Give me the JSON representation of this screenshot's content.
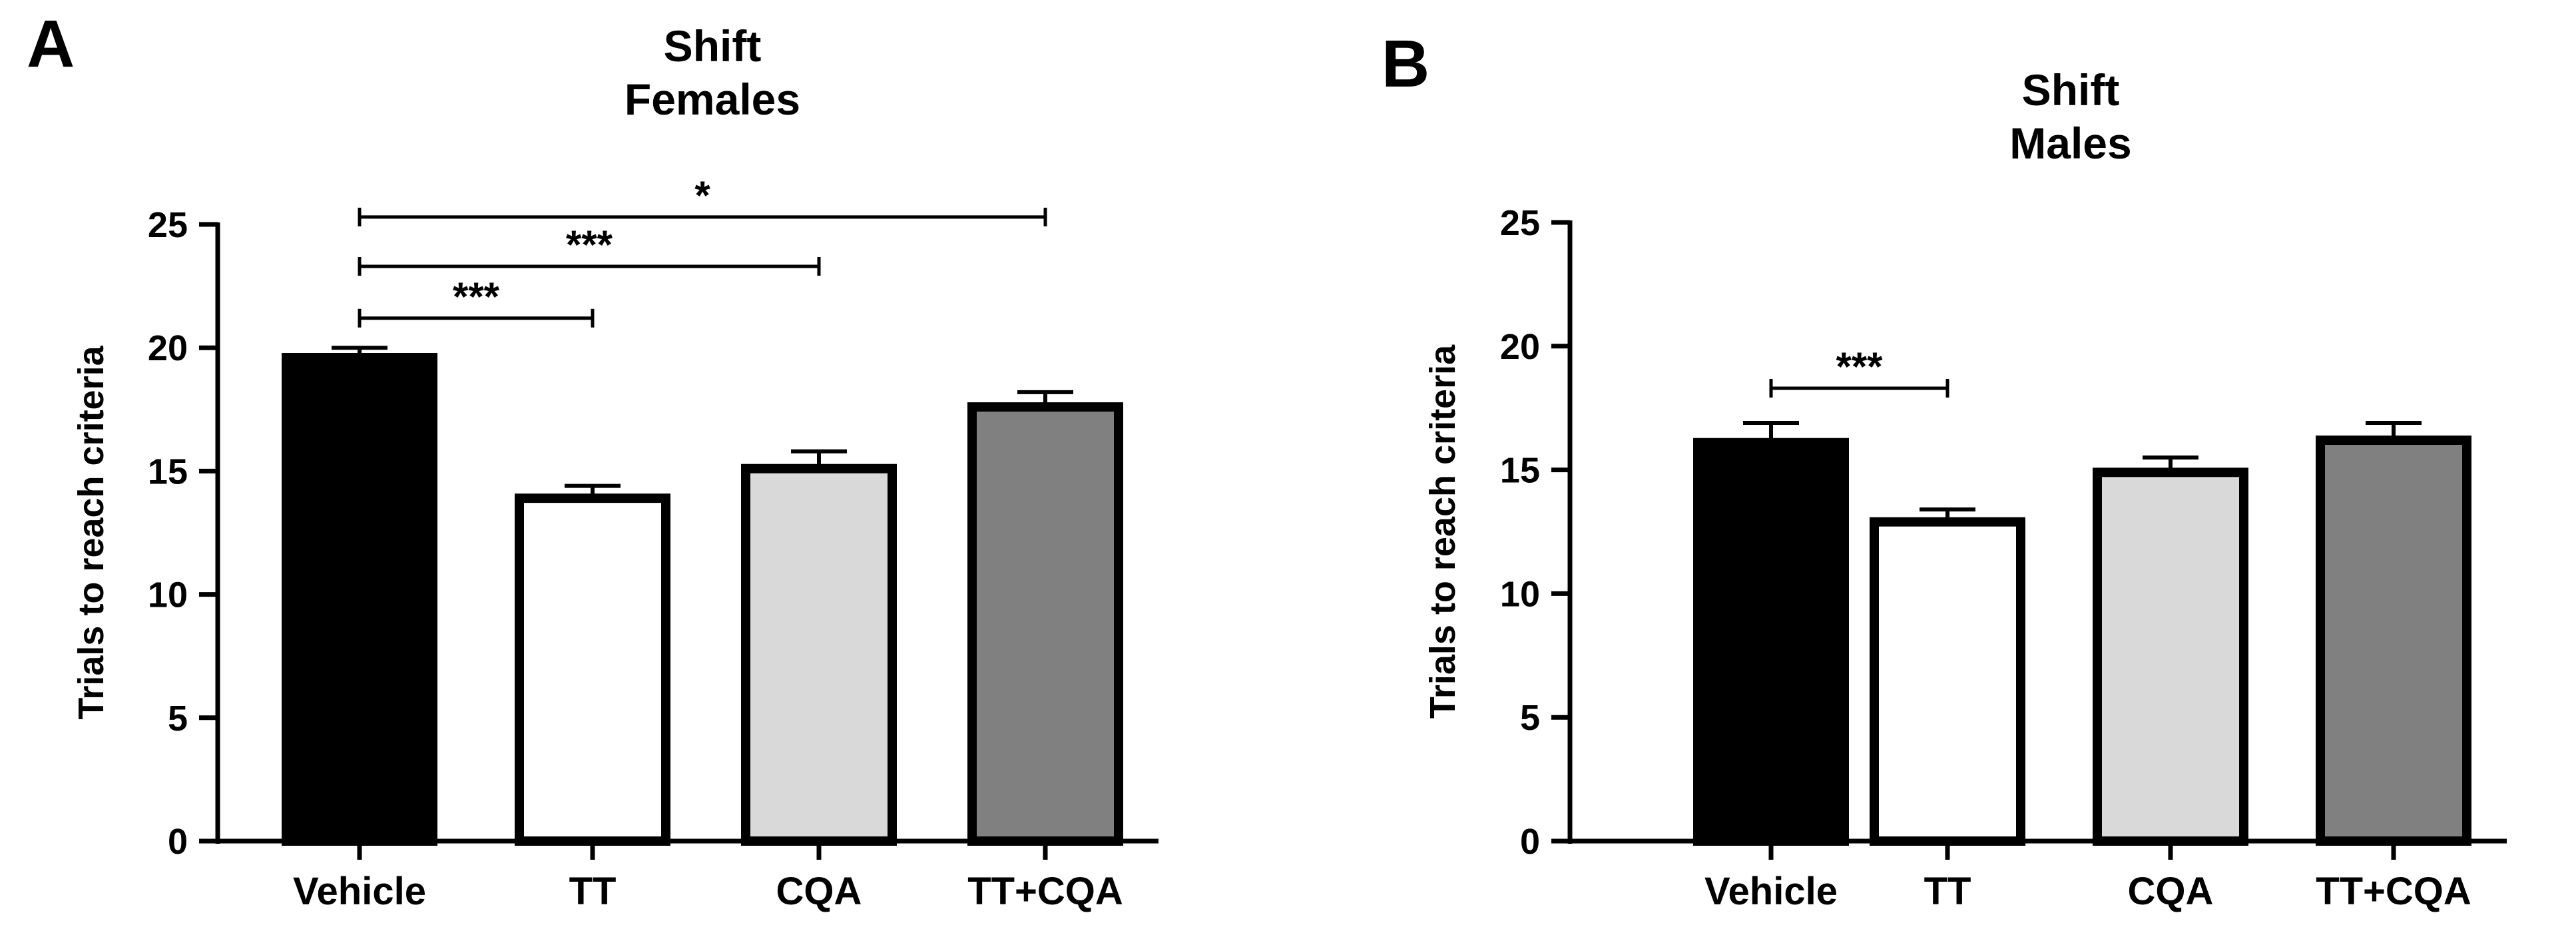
{
  "chart_data": [
    {
      "panel_label": "A",
      "type": "bar",
      "title_lines": [
        "Shift",
        "Females"
      ],
      "xlabel": "",
      "ylabel": "Trials to reach criteria",
      "ylim": [
        0,
        25
      ],
      "yticks": [
        0,
        5,
        10,
        15,
        20,
        25
      ],
      "categories": [
        "Vehicle",
        "TT",
        "CQA",
        "TT+CQA"
      ],
      "values": [
        19.6,
        13.9,
        15.1,
        17.6
      ],
      "errors": [
        0.4,
        0.5,
        0.7,
        0.6
      ],
      "bar_colors": [
        "#000000",
        "#ffffff",
        "#d9d9d9",
        "#808080"
      ],
      "significance": [
        {
          "from": 0,
          "to": 1,
          "y": 21.2,
          "label": "***"
        },
        {
          "from": 0,
          "to": 2,
          "y": 23.3,
          "label": "***"
        },
        {
          "from": 0,
          "to": 3,
          "y": 25.3,
          "label": "*"
        }
      ]
    },
    {
      "panel_label": "B",
      "type": "bar",
      "title_lines": [
        "Shift",
        "Males"
      ],
      "xlabel": "",
      "ylabel": "Trials to reach criteria",
      "ylim": [
        0,
        25
      ],
      "yticks": [
        0,
        5,
        10,
        15,
        20,
        25
      ],
      "categories": [
        "Vehicle",
        "TT",
        "CQA",
        "TT+CQA"
      ],
      "values": [
        16.1,
        12.9,
        14.9,
        16.2
      ],
      "errors": [
        0.8,
        0.5,
        0.6,
        0.7
      ],
      "bar_colors": [
        "#000000",
        "#ffffff",
        "#d9d9d9",
        "#808080"
      ],
      "significance": [
        {
          "from": 0,
          "to": 1,
          "y": 18.3,
          "label": "***"
        }
      ]
    }
  ]
}
